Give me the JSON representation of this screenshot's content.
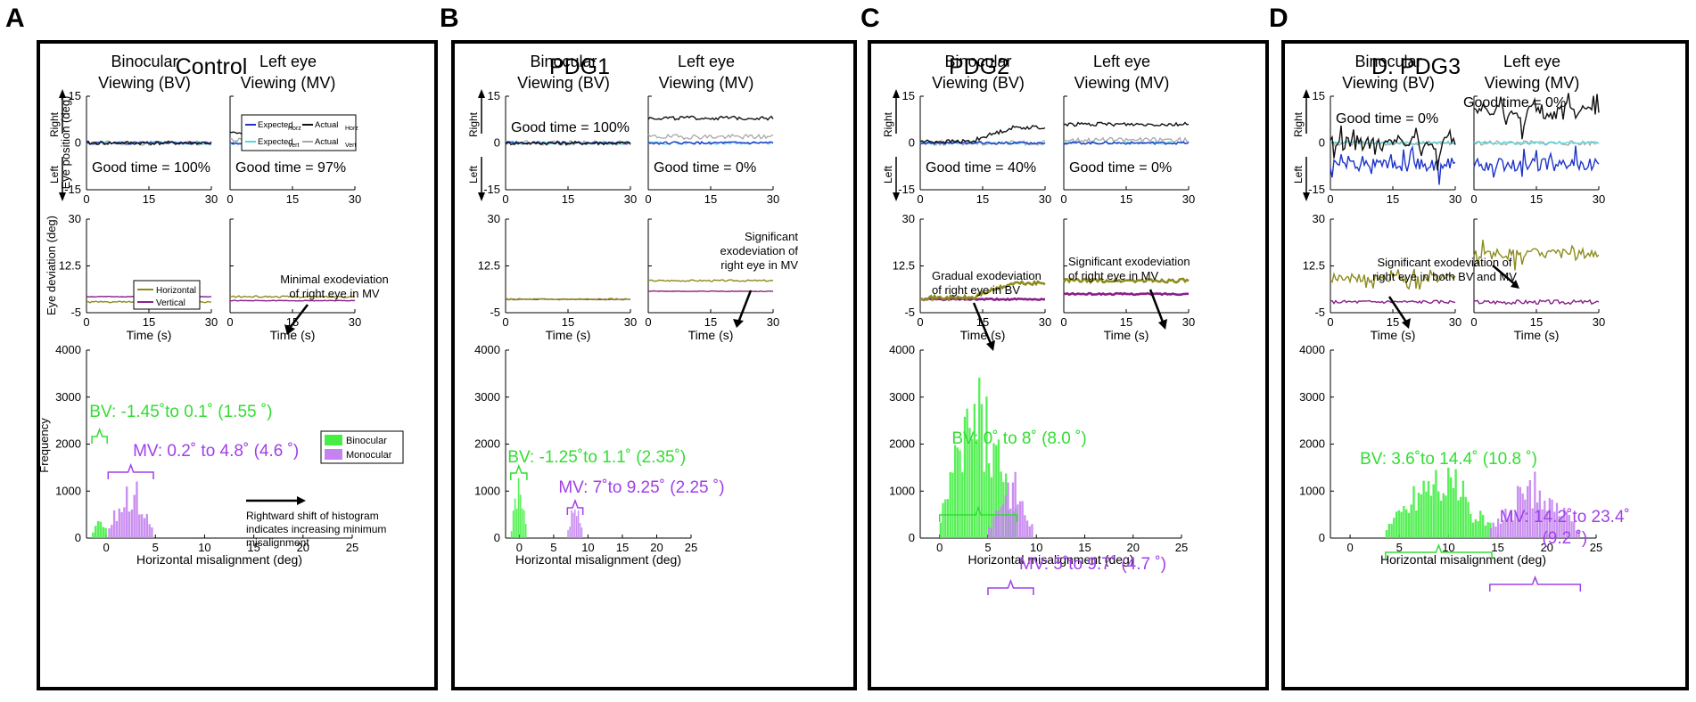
{
  "figure": {
    "panel_letters": [
      "A",
      "B",
      "C",
      "D"
    ],
    "col_headers": {
      "bv": [
        "Binocular",
        "Viewing (BV)"
      ],
      "mv": [
        "Left eye",
        "Viewing (MV)"
      ]
    },
    "y_direction": {
      "right": "Right",
      "left": "Left"
    },
    "axis_labels": {
      "eye_position": "Eye position (deg)",
      "eye_deviation": "Eye deviation (deg)",
      "time": "Time (s)",
      "frequency": "Frequency",
      "misalignment": "Horizontal misalignment (deg)"
    },
    "position_legend": [
      "Expected",
      "Horz",
      "Actual",
      "Horz",
      "Expected",
      "Vert",
      "Actual",
      "Vert"
    ],
    "deviation_legend": [
      "Horizontal",
      "Vertical"
    ],
    "hist_legend": [
      "Binocular",
      "Monocular"
    ],
    "colors": {
      "expected_horz": "#1f35c9",
      "actual_horz": "#111111",
      "expected_vert": "#55d8d8",
      "actual_vert": "#a8a8a8",
      "horizontal": "#8c8c1e",
      "vertical": "#8a1f8a",
      "binocular": "#44ee44",
      "monocular": "#c483f0",
      "bv_text": "#33dd33",
      "mv_text": "#a040e8"
    }
  },
  "chart_data": [
    {
      "type": "line",
      "panel": "A",
      "title": "Control",
      "good_time": {
        "bv": "Good time = 100%",
        "mv": "Good time = 97%"
      },
      "position_ylim": [
        -15,
        15
      ],
      "position_yticks": [
        "15",
        "0",
        "-15"
      ],
      "time_xlim": [
        0,
        30
      ],
      "time_xticks": [
        "0",
        "15",
        "30"
      ],
      "deviation_ylim": [
        -5,
        30
      ],
      "deviation_yticks": [
        "30",
        "12.5",
        "-5"
      ],
      "bv_position": {
        "expected_horz": 0,
        "actual_horz": 0,
        "expected_vert": 0,
        "actual_vert": 0
      },
      "mv_position": {
        "expected_horz": 0,
        "actual_horz": 3,
        "expected_vert": 0,
        "actual_vert": 1
      },
      "bv_deviation": {
        "horizontal": -1,
        "vertical": 1
      },
      "mv_deviation": {
        "horizontal": 1,
        "vertical": -0.5
      },
      "deviation_annotation": [
        "Minimal exodeviation",
        "of right eye in MV"
      ],
      "histogram": {
        "type": "bar",
        "xlim": [
          -2,
          25
        ],
        "ylim": [
          0,
          4000
        ],
        "xticks": [
          "0",
          "5",
          "10",
          "15",
          "20",
          "25"
        ],
        "yticks": [
          "4000",
          "3000",
          "2000",
          "1000",
          "0"
        ],
        "bv_range_label": "BV: -1.45˚to 0.1˚ (1.55 ˚)",
        "mv_range_label": "MV: 0.2˚ to 4.8˚ (4.6 ˚)",
        "bv_range": [
          -1.45,
          0.1
        ],
        "mv_range": [
          0.2,
          4.8
        ],
        "shift_annotation": [
          "Rightward shift of histogram",
          "indicates increasing minimum",
          "misalignment"
        ]
      }
    },
    {
      "type": "line",
      "panel": "B",
      "title": "PDG1",
      "good_time": {
        "bv": "Good time = 100%",
        "mv": "Good time = 0%"
      },
      "position_ylim": [
        -15,
        15
      ],
      "position_yticks": [
        "15",
        "0",
        "-15"
      ],
      "time_xlim": [
        0,
        30
      ],
      "time_xticks": [
        "0",
        "15",
        "30"
      ],
      "deviation_ylim": [
        -5,
        30
      ],
      "deviation_yticks": [
        "30",
        "12.5",
        "-5"
      ],
      "bv_position": {
        "expected_horz": 0,
        "actual_horz": 0,
        "expected_vert": 0,
        "actual_vert": 0
      },
      "mv_position": {
        "expected_horz": 0,
        "actual_horz": 8,
        "expected_vert": 0,
        "actual_vert": 2
      },
      "bv_deviation": {
        "horizontal": 0,
        "vertical": 0
      },
      "mv_deviation": {
        "horizontal": 7,
        "vertical": 3
      },
      "deviation_annotation": [
        "Significant",
        "exodeviation of",
        "right eye in MV"
      ],
      "histogram": {
        "type": "bar",
        "xlim": [
          -2,
          25
        ],
        "ylim": [
          0,
          4000
        ],
        "xticks": [
          "0",
          "5",
          "10",
          "15",
          "20",
          "25"
        ],
        "yticks": [
          "4000",
          "3000",
          "2000",
          "1000",
          "0"
        ],
        "bv_range_label": "BV: -1.25˚to 1.1˚ (2.35˚)",
        "mv_range_label": "MV: 7˚to 9.25˚ (2.25 ˚)",
        "bv_range": [
          -1.25,
          1.1
        ],
        "mv_range": [
          7,
          9.25
        ]
      }
    },
    {
      "type": "line",
      "panel": "C",
      "title": "PDG2",
      "good_time": {
        "bv": "Good time = 40%",
        "mv": "Good time = 0%"
      },
      "position_ylim": [
        -15,
        15
      ],
      "position_yticks": [
        "15",
        "0",
        "-15"
      ],
      "time_xlim": [
        0,
        30
      ],
      "time_xticks": [
        "0",
        "15",
        "30"
      ],
      "deviation_ylim": [
        -5,
        30
      ],
      "deviation_yticks": [
        "30",
        "12.5",
        "-5"
      ],
      "bv_position": {
        "expected_horz": 0,
        "actual_horz": 5,
        "expected_vert": 0,
        "actual_vert": 0
      },
      "mv_position": {
        "expected_horz": 0,
        "actual_horz": 6,
        "expected_vert": 0,
        "actual_vert": 1
      },
      "bv_deviation": {
        "horizontal": 6,
        "vertical": 0
      },
      "mv_deviation": {
        "horizontal": 7,
        "vertical": 2
      },
      "deviation_annotation_bv": [
        "Gradual exodeviation",
        "of right eye in BV"
      ],
      "deviation_annotation_mv": [
        "Significant exodeviation",
        "of right eye in MV"
      ],
      "histogram": {
        "type": "bar",
        "xlim": [
          -2,
          25
        ],
        "ylim": [
          0,
          4000
        ],
        "xticks": [
          "0",
          "5",
          "10",
          "15",
          "20",
          "25"
        ],
        "yticks": [
          "4000",
          "3000",
          "2000",
          "1000",
          "0"
        ],
        "bv_range_label": "BV: 0˚ to 8˚ (8.0 ˚)",
        "mv_range_label": "MV: 5˚to 9.7˚ (4.7 ˚)",
        "bv_range": [
          0,
          8
        ],
        "mv_range": [
          5,
          9.7
        ]
      }
    },
    {
      "type": "line",
      "panel": "D",
      "title": "D. PDG3",
      "good_time": {
        "bv": "Good time = 0%",
        "mv": "Good time = 0%"
      },
      "position_ylim": [
        -15,
        15
      ],
      "position_yticks": [
        "15",
        "0",
        "-15"
      ],
      "time_xlim": [
        0,
        30
      ],
      "time_xticks": [
        "0",
        "15",
        "30"
      ],
      "deviation_ylim": [
        -5,
        30
      ],
      "deviation_yticks": [
        "30",
        "12.5",
        "-5"
      ],
      "bv_position": {
        "expected_horz": -7,
        "actual_horz": 0,
        "expected_vert": 0,
        "actual_vert": 0
      },
      "mv_position": {
        "expected_horz": -7,
        "actual_horz": 10,
        "expected_vert": 0,
        "actual_vert": 0
      },
      "bv_deviation": {
        "horizontal": 8,
        "vertical": -1
      },
      "mv_deviation": {
        "horizontal": 17,
        "vertical": -1
      },
      "deviation_annotation": [
        "Significant exodeviation of",
        "right eye in both BV and MV"
      ],
      "histogram": {
        "type": "bar",
        "xlim": [
          -2,
          25
        ],
        "ylim": [
          0,
          4000
        ],
        "xticks": [
          "0",
          "5",
          "10",
          "15",
          "20",
          "25"
        ],
        "yticks": [
          "4000",
          "3000",
          "2000",
          "1000",
          "0"
        ],
        "bv_range_label": "BV: 3.6˚to 14.4˚ (10.8 ˚)",
        "mv_range_label": [
          "MV: 14.2˚to 23.4˚",
          "(9.2 ˚)"
        ],
        "bv_range": [
          3.6,
          14.4
        ],
        "mv_range": [
          14.2,
          23.4
        ]
      }
    }
  ]
}
